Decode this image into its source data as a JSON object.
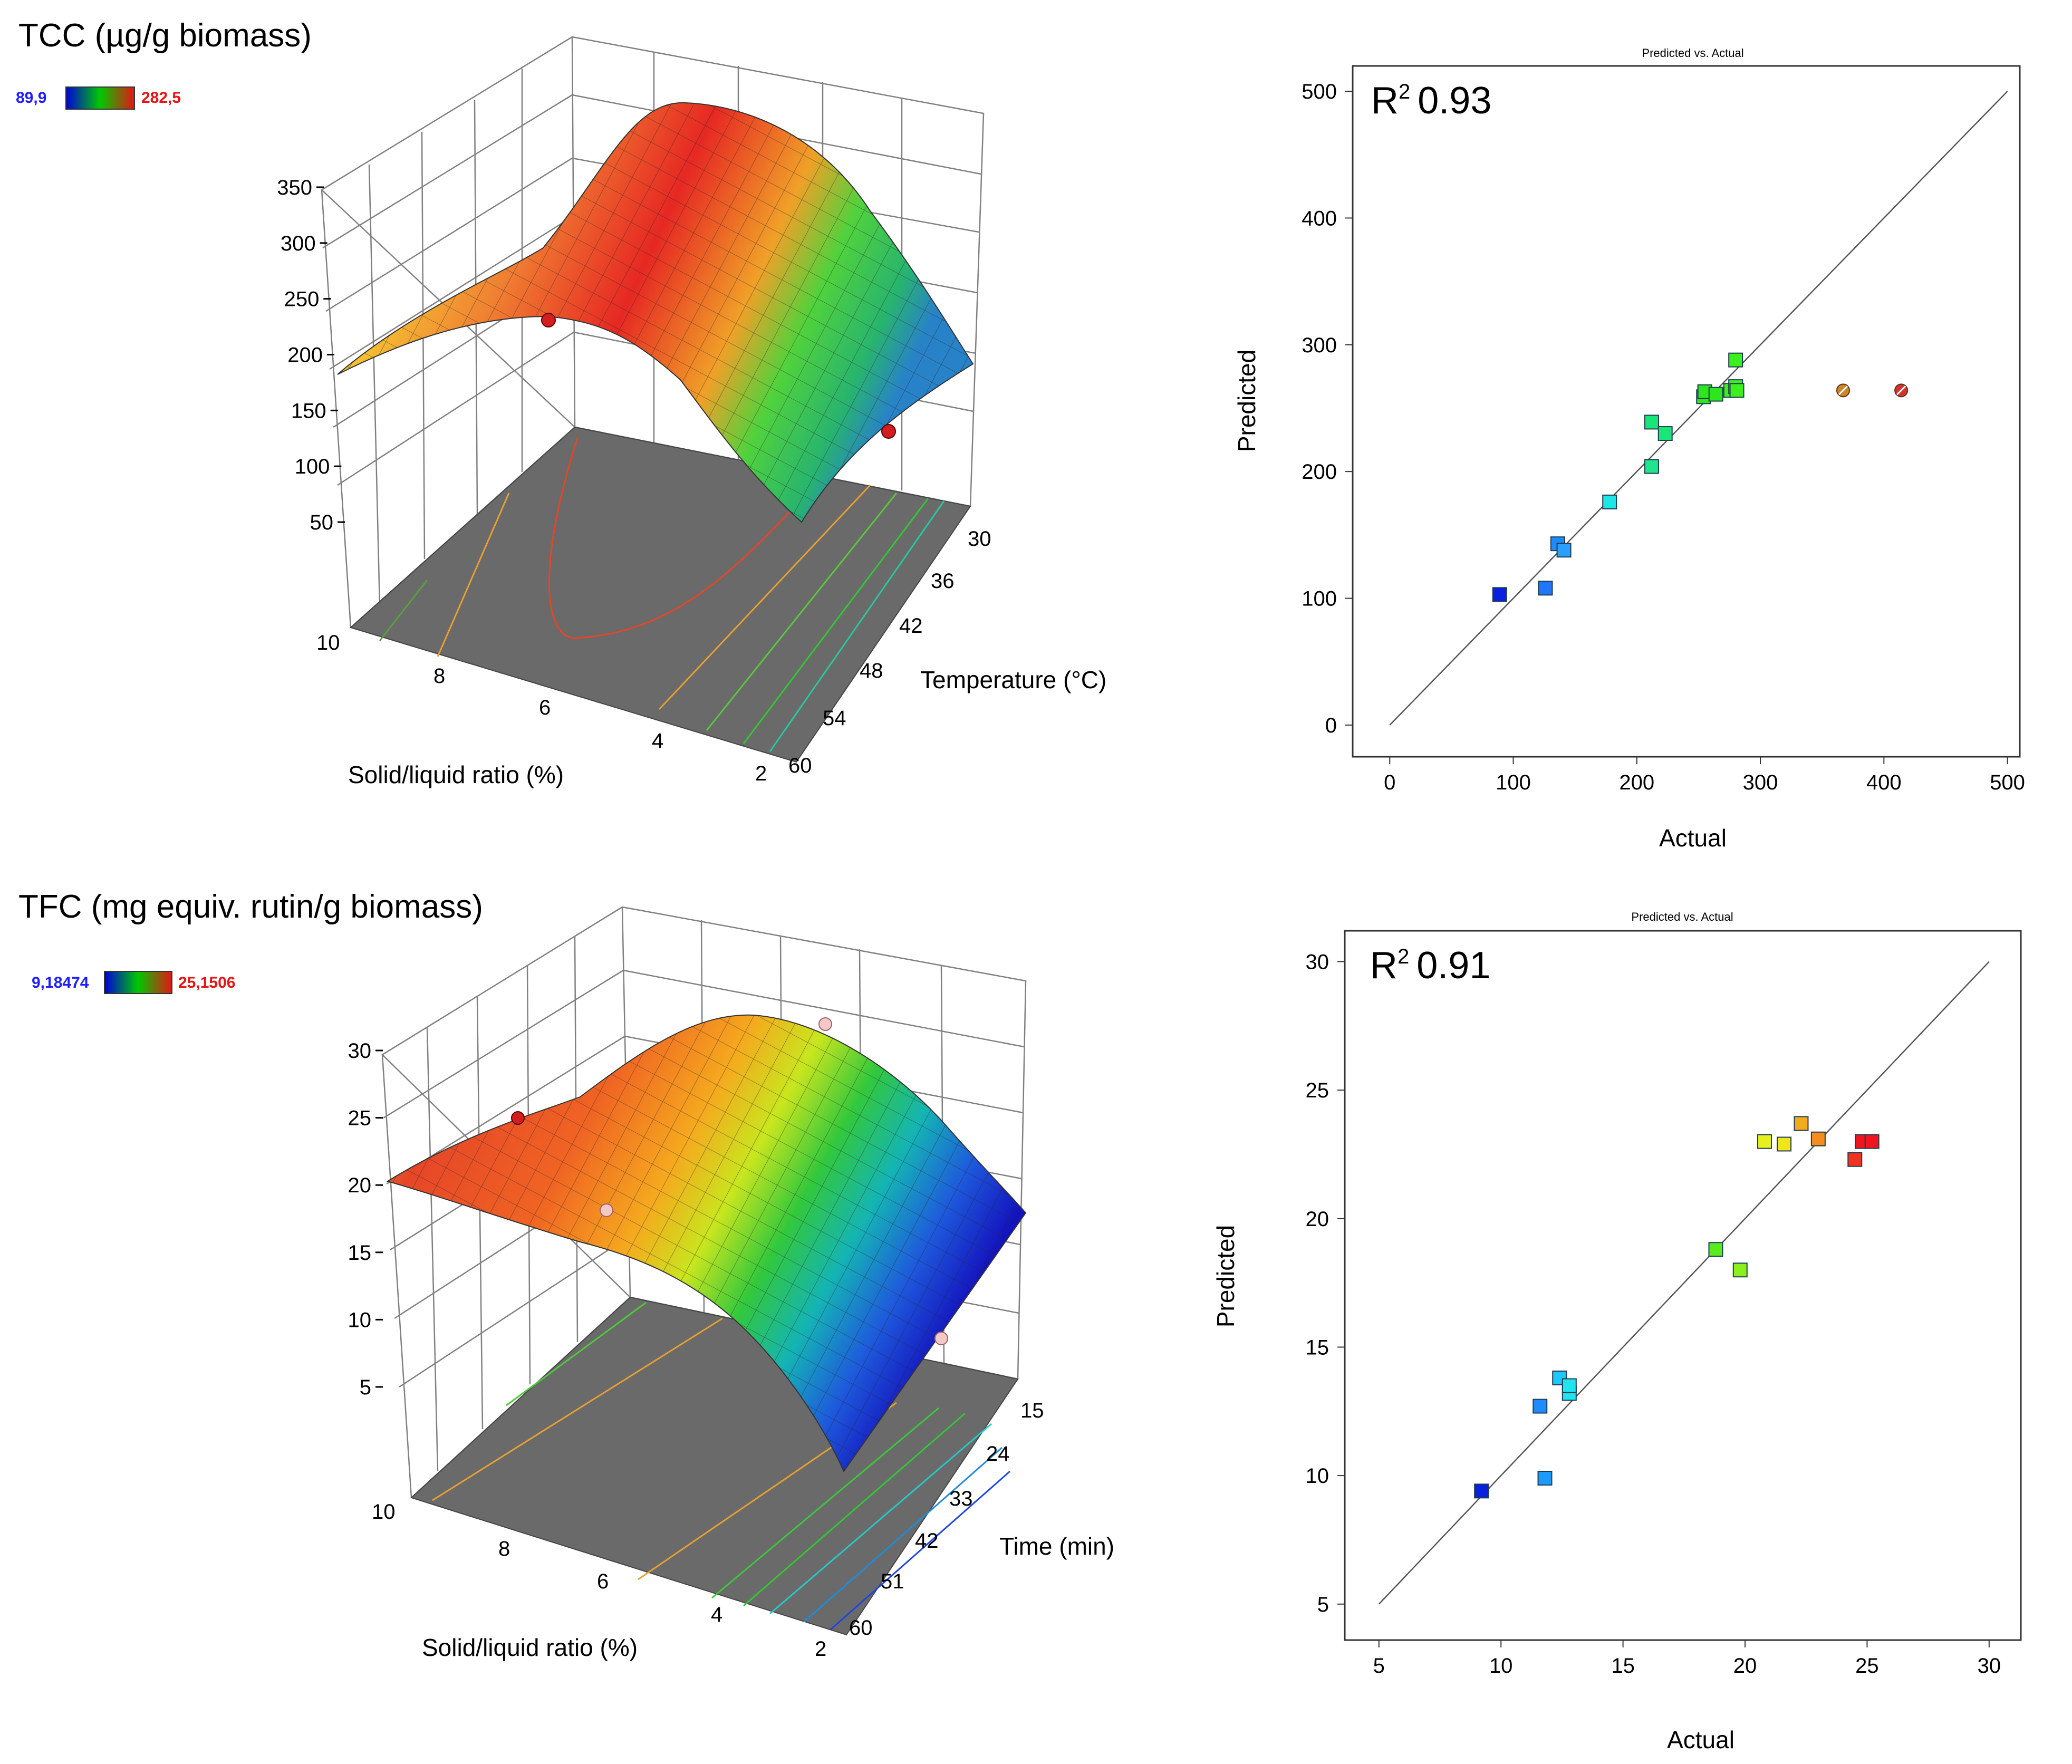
{
  "panels": {
    "tcc": {
      "title": "TCC (µg/g biomass)",
      "colorbar": {
        "min": "89,9",
        "max": "282,5"
      },
      "x_label": "Solid/liquid ratio (%)",
      "y_label": "Temperature (°C)",
      "z_ticks": [
        "50",
        "100",
        "150",
        "200",
        "250",
        "300",
        "350"
      ],
      "x_ticks": [
        "10",
        "8",
        "6",
        "4",
        "2"
      ],
      "y_ticks": [
        "30",
        "36",
        "42",
        "48",
        "54",
        "60"
      ]
    },
    "tfc": {
      "title": "TFC (mg equiv. rutin/g biomass)",
      "colorbar": {
        "min": "9,18474",
        "max": "25,1506"
      },
      "x_label": "Solid/liquid ratio (%)",
      "y_label": "Time (min)",
      "z_ticks": [
        "5",
        "10",
        "15",
        "20",
        "25",
        "30"
      ],
      "x_ticks": [
        "10",
        "8",
        "6",
        "4",
        "2"
      ],
      "y_ticks": [
        "15",
        "24",
        "33",
        "42",
        "51",
        "60"
      ]
    }
  },
  "chart_data": [
    {
      "type": "surface",
      "title": "TCC (µg/g biomass)",
      "x": "Solid/liquid ratio (%)",
      "y": "Temperature (°C)",
      "xlim": [
        2,
        10
      ],
      "ylim": [
        30,
        60
      ],
      "zlim": [
        50,
        350
      ],
      "colorbar_range": [
        89.9,
        282.5
      ]
    },
    {
      "type": "scatter",
      "title": "Predicted vs. Actual",
      "annotation": "R² 0.93",
      "r2_label": "R",
      "r2_value": "0.93",
      "xlabel": "Actual",
      "ylabel": "Predicted",
      "xlim": [
        -30,
        510
      ],
      "ylim": [
        -25,
        520
      ],
      "xticks": [
        0,
        100,
        200,
        300,
        400,
        500
      ],
      "yticks": [
        0,
        100,
        200,
        300,
        400,
        500
      ],
      "points": [
        {
          "x": 89,
          "y": 103,
          "color": "#0a1fe0"
        },
        {
          "x": 126,
          "y": 108,
          "color": "#1e78ff"
        },
        {
          "x": 136,
          "y": 143,
          "color": "#1e8cff"
        },
        {
          "x": 141,
          "y": 138,
          "color": "#29a0ff"
        },
        {
          "x": 178,
          "y": 176,
          "color": "#1ee6e6"
        },
        {
          "x": 212,
          "y": 204,
          "color": "#1ee68c"
        },
        {
          "x": 212,
          "y": 239,
          "color": "#19e678"
        },
        {
          "x": 223,
          "y": 230,
          "color": "#19e678"
        },
        {
          "x": 254,
          "y": 259,
          "color": "#2ee61e"
        },
        {
          "x": 255,
          "y": 263,
          "color": "#2ee61e"
        },
        {
          "x": 264,
          "y": 261,
          "color": "#2ee61e"
        },
        {
          "x": 276,
          "y": 264,
          "color": "#3cf01e"
        },
        {
          "x": 280,
          "y": 267,
          "color": "#3cf01e"
        },
        {
          "x": 281,
          "y": 264,
          "color": "#3cf01e"
        },
        {
          "x": 280,
          "y": 288,
          "color": "#3cf01e"
        }
      ],
      "excluded_points": [
        {
          "x": 367,
          "y": 264,
          "color": "#d2822a"
        },
        {
          "x": 414,
          "y": 264,
          "color": "#d23232"
        }
      ]
    },
    {
      "type": "surface",
      "title": "TFC (mg equiv. rutin/g biomass)",
      "x": "Solid/liquid ratio (%)",
      "y": "Time (min)",
      "xlim": [
        2,
        10
      ],
      "ylim": [
        15,
        60
      ],
      "zlim": [
        5,
        30
      ],
      "colorbar_range": [
        9.18474,
        25.1506
      ]
    },
    {
      "type": "scatter",
      "title": "Predicted vs. Actual",
      "annotation": "R² 0.91",
      "r2_label": "R",
      "r2_value": "0.91",
      "xlabel": "Actual",
      "ylabel": "Predicted",
      "xlim": [
        3.6,
        31.3
      ],
      "ylim": [
        3.6,
        31.2
      ],
      "xticks": [
        5,
        10,
        15,
        20,
        25,
        30
      ],
      "yticks": [
        5,
        10,
        15,
        20,
        25,
        30
      ],
      "points": [
        {
          "x": 9.2,
          "y": 9.4,
          "color": "#0a1fe0"
        },
        {
          "x": 11.6,
          "y": 12.7,
          "color": "#1e8cff"
        },
        {
          "x": 11.8,
          "y": 9.9,
          "color": "#1e9aff"
        },
        {
          "x": 12.4,
          "y": 13.8,
          "color": "#1ec8ff"
        },
        {
          "x": 12.8,
          "y": 13.2,
          "color": "#1ee6f0"
        },
        {
          "x": 12.8,
          "y": 13.5,
          "color": "#1ee6f0"
        },
        {
          "x": 18.8,
          "y": 18.8,
          "color": "#5aeb1e"
        },
        {
          "x": 19.8,
          "y": 18.0,
          "color": "#8cf01e"
        },
        {
          "x": 20.8,
          "y": 23.0,
          "color": "#e6f01e"
        },
        {
          "x": 21.6,
          "y": 22.9,
          "color": "#f0e61e"
        },
        {
          "x": 22.3,
          "y": 23.7,
          "color": "#f5aa1e"
        },
        {
          "x": 23.0,
          "y": 23.1,
          "color": "#f58c1e"
        },
        {
          "x": 24.5,
          "y": 22.3,
          "color": "#f0321e"
        },
        {
          "x": 24.8,
          "y": 23.0,
          "color": "#f0141e"
        },
        {
          "x": 25.2,
          "y": 23.0,
          "color": "#f0141e"
        }
      ]
    }
  ]
}
